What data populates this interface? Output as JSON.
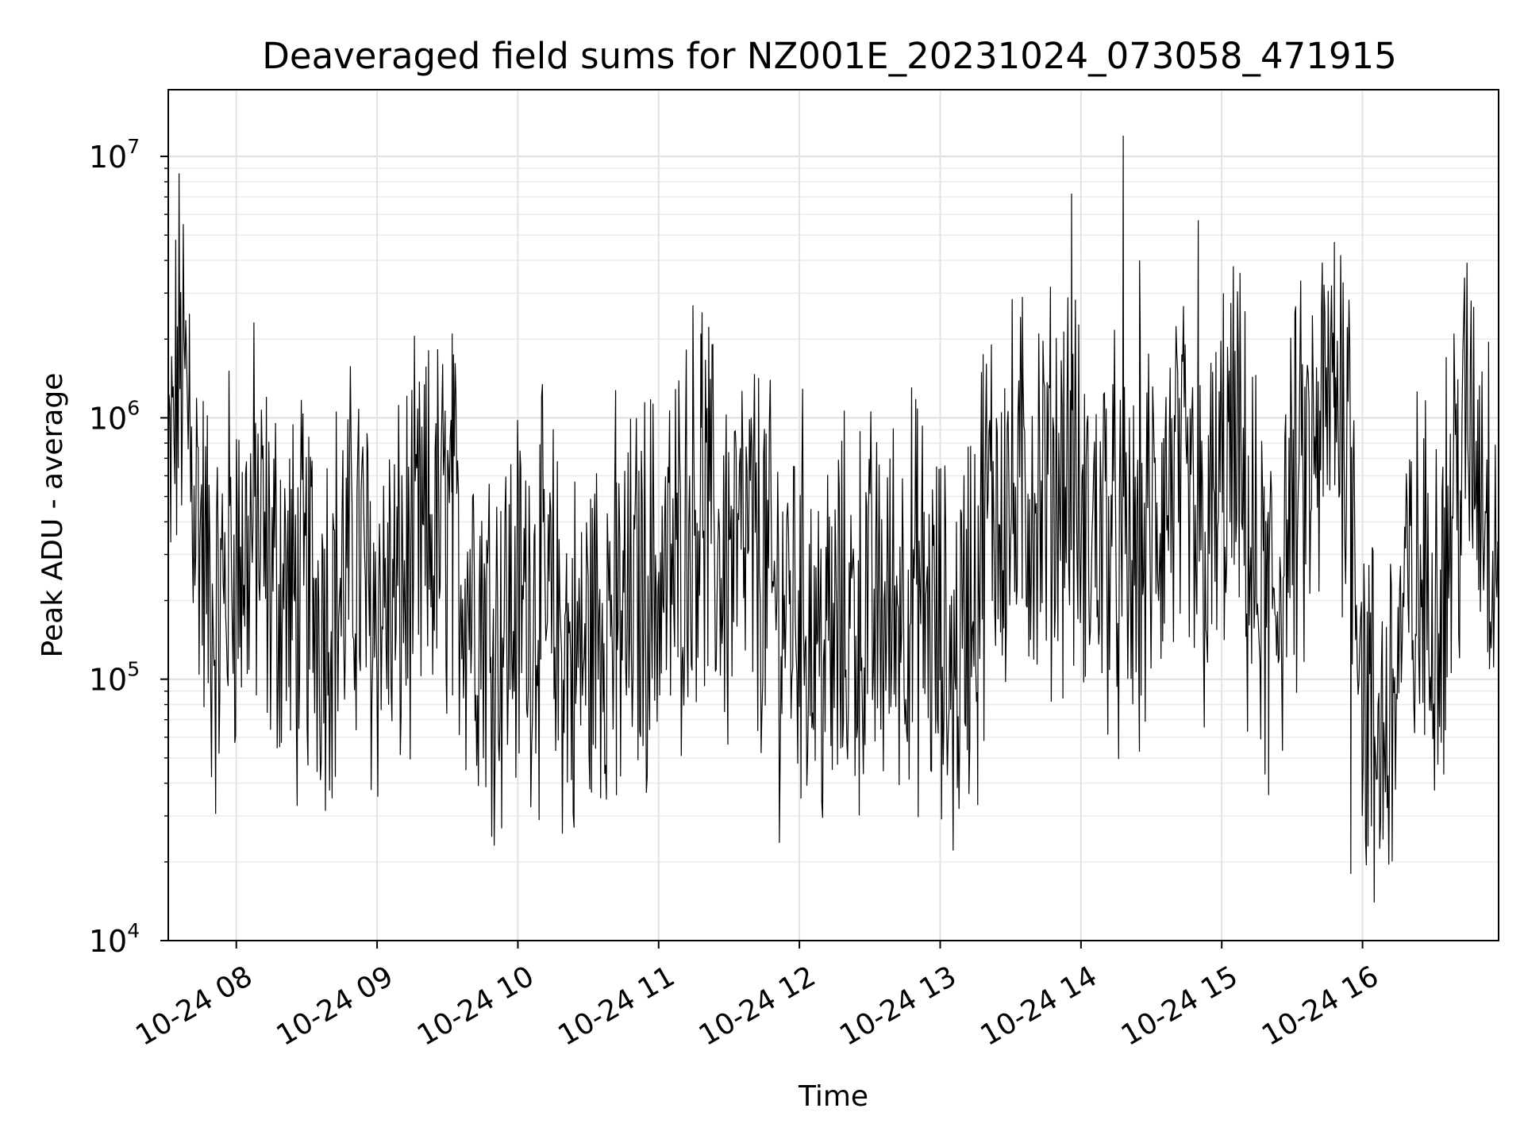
{
  "chart_data": {
    "type": "line",
    "title": "Deaveraged field sums for NZ001E_20231024_073058_471915",
    "xlabel": "Time",
    "ylabel": "Peak ADU - average",
    "yscale": "log",
    "ylim": [
      10000,
      18000000
    ],
    "xlim": [
      "2023-10-24 07:31",
      "2023-10-24 16:58"
    ],
    "grid": true,
    "color": "#000000",
    "x_ticks": [
      "10-24 08",
      "10-24 09",
      "10-24 10",
      "10-24 11",
      "10-24 12",
      "10-24 13",
      "10-24 14",
      "10-24 15",
      "10-24 16"
    ],
    "y_ticks": [
      {
        "base": "10",
        "exp": "4",
        "value": 10000
      },
      {
        "base": "10",
        "exp": "5",
        "value": 100000
      },
      {
        "base": "10",
        "exp": "6",
        "value": 1000000
      },
      {
        "base": "10",
        "exp": "7",
        "value": 10000000
      }
    ],
    "series": [
      {
        "x": [
          "2023-10-24 07:31",
          "2023-10-24 07:36",
          "2023-10-24 07:41",
          "2023-10-24 07:47",
          "2023-10-24 07:52",
          "2023-10-24 07:57",
          "2023-10-24 08:03",
          "2023-10-24 08:08",
          "2023-10-24 08:14",
          "2023-10-24 08:19",
          "2023-10-24 08:25",
          "2023-10-24 08:30",
          "2023-10-24 08:35",
          "2023-10-24 08:41",
          "2023-10-24 08:46",
          "2023-10-24 08:52",
          "2023-10-24 08:57",
          "2023-10-24 09:03",
          "2023-10-24 09:08",
          "2023-10-24 09:13",
          "2023-10-24 09:19",
          "2023-10-24 09:24",
          "2023-10-24 09:30",
          "2023-10-24 09:35",
          "2023-10-24 09:41",
          "2023-10-24 09:46",
          "2023-10-24 09:51",
          "2023-10-24 09:57",
          "2023-10-24 10:02",
          "2023-10-24 10:08",
          "2023-10-24 10:13",
          "2023-10-24 10:19",
          "2023-10-24 10:24",
          "2023-10-24 10:29",
          "2023-10-24 10:35",
          "2023-10-24 10:40",
          "2023-10-24 10:46",
          "2023-10-24 10:51",
          "2023-10-24 10:57",
          "2023-10-24 11:02",
          "2023-10-24 11:07",
          "2023-10-24 11:13",
          "2023-10-24 11:18",
          "2023-10-24 11:24",
          "2023-10-24 11:29",
          "2023-10-24 11:35",
          "2023-10-24 11:40",
          "2023-10-24 11:45",
          "2023-10-24 11:51",
          "2023-10-24 11:56",
          "2023-10-24 12:02",
          "2023-10-24 12:07",
          "2023-10-24 12:13",
          "2023-10-24 12:18",
          "2023-10-24 12:23",
          "2023-10-24 12:29",
          "2023-10-24 12:34",
          "2023-10-24 12:40",
          "2023-10-24 12:45",
          "2023-10-24 12:51",
          "2023-10-24 12:56",
          "2023-10-24 13:01",
          "2023-10-24 13:07",
          "2023-10-24 13:12",
          "2023-10-24 13:18",
          "2023-10-24 13:23",
          "2023-10-24 13:29",
          "2023-10-24 13:34",
          "2023-10-24 13:39",
          "2023-10-24 13:45",
          "2023-10-24 13:50",
          "2023-10-24 13:56",
          "2023-10-24 14:01",
          "2023-10-24 14:07",
          "2023-10-24 14:12",
          "2023-10-24 14:17",
          "2023-10-24 14:23",
          "2023-10-24 14:28",
          "2023-10-24 14:34",
          "2023-10-24 14:39",
          "2023-10-24 14:45",
          "2023-10-24 14:50",
          "2023-10-24 14:55",
          "2023-10-24 15:01",
          "2023-10-24 15:06",
          "2023-10-24 15:12",
          "2023-10-24 15:17",
          "2023-10-24 15:23",
          "2023-10-24 15:28",
          "2023-10-24 15:33",
          "2023-10-24 15:39",
          "2023-10-24 15:44",
          "2023-10-24 15:50",
          "2023-10-24 15:55",
          "2023-10-24 16:01",
          "2023-10-24 16:06",
          "2023-10-24 16:12",
          "2023-10-24 16:17",
          "2023-10-24 16:23",
          "2023-10-24 16:28",
          "2023-10-24 16:34",
          "2023-10-24 16:39",
          "2023-10-24 16:45",
          "2023-10-24 16:50",
          "2023-10-24 16:56"
        ],
        "y": [
          420000,
          1800000,
          700000,
          250000,
          150000,
          300000,
          280000,
          400000,
          240000,
          250000,
          180000,
          220000,
          200000,
          210000,
          230000,
          320000,
          190000,
          200000,
          180000,
          260000,
          300000,
          350000,
          400000,
          280000,
          230000,
          180000,
          160000,
          180000,
          200000,
          220000,
          170000,
          140000,
          110000,
          130000,
          180000,
          200000,
          160000,
          210000,
          240000,
          230000,
          260000,
          450000,
          550000,
          320000,
          280000,
          300000,
          320000,
          260000,
          180000,
          200000,
          200000,
          140000,
          130000,
          160000,
          170000,
          180000,
          170000,
          190000,
          230000,
          200000,
          160000,
          120000,
          110000,
          200000,
          380000,
          500000,
          480000,
          420000,
          550000,
          500000,
          600000,
          650000,
          300000,
          380000,
          400000,
          260000,
          250000,
          330000,
          420000,
          580000,
          430000,
          300000,
          330000,
          600000,
          700000,
          300000,
          180000,
          200000,
          380000,
          500000,
          650000,
          1000000,
          1300000,
          900000,
          75000,
          60000,
          70000,
          160000,
          220000,
          200000,
          260000,
          500000,
          900000,
          700000,
          380000
        ]
      }
    ],
    "spikes": [
      {
        "x": "2023-10-24 07:40",
        "y": 2500000
      },
      {
        "x": "2023-10-24 09:32",
        "y": 2100000
      },
      {
        "x": "2023-10-24 11:18",
        "y": 2100000
      },
      {
        "x": "2023-10-24 13:35",
        "y": 2900000
      },
      {
        "x": "2023-10-24 13:56",
        "y": 7200000
      },
      {
        "x": "2023-10-24 14:18",
        "y": 12000000
      },
      {
        "x": "2023-10-24 14:25",
        "y": 4000000
      },
      {
        "x": "2023-10-24 14:50",
        "y": 5700000
      },
      {
        "x": "2023-10-24 15:48",
        "y": 4700000
      },
      {
        "x": "2023-10-24 16:39",
        "y": 2100000
      },
      {
        "x": "2023-10-24 10:42",
        "y": 36000
      },
      {
        "x": "2023-10-24 13:16",
        "y": 33000
      },
      {
        "x": "2023-10-24 15:55",
        "y": 18000
      },
      {
        "x": "2023-10-24 16:05",
        "y": 14000
      },
      {
        "x": "2023-10-24 12:14",
        "y": 45000
      },
      {
        "x": "2023-10-24 15:20",
        "y": 36000
      }
    ]
  }
}
